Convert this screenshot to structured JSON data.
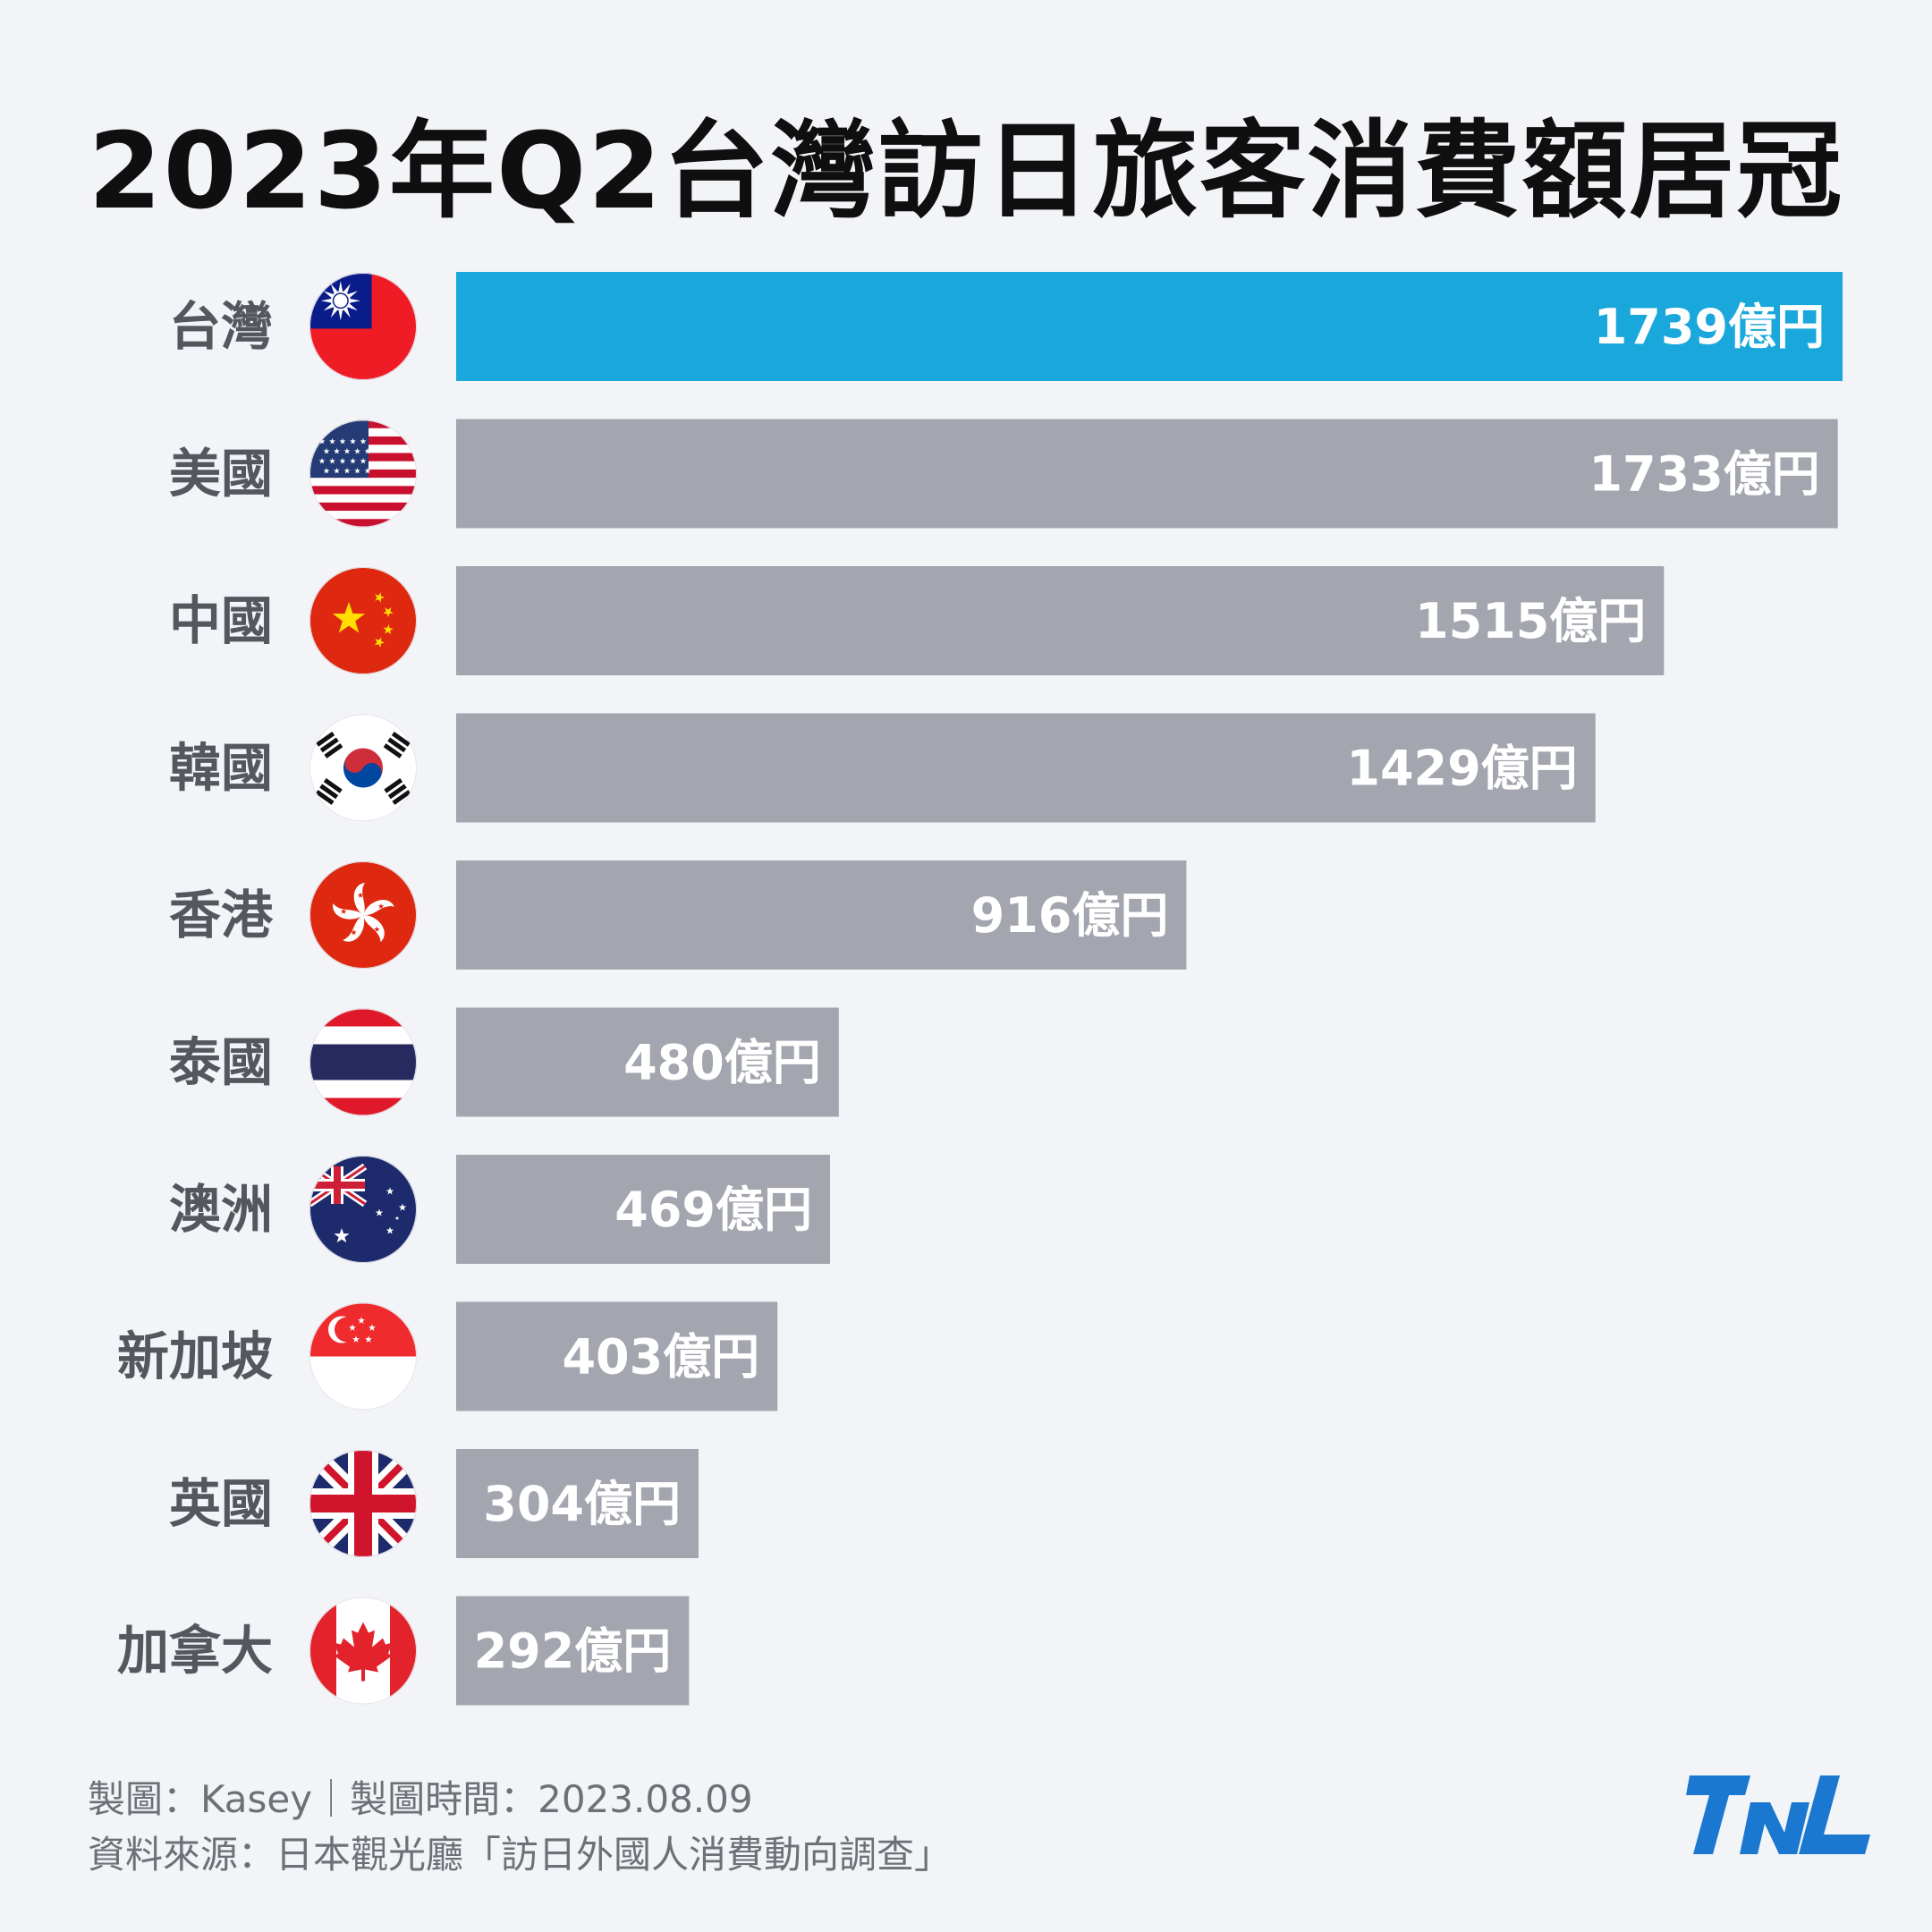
{
  "title": "2023年Q2台灣訪日旅客消費額居冠",
  "chart_data": {
    "type": "bar",
    "orientation": "horizontal",
    "unit": "億円",
    "categories": [
      "台灣",
      "美國",
      "中國",
      "韓國",
      "香港",
      "泰國",
      "澳洲",
      "新加坡",
      "英國",
      "加拿大"
    ],
    "values": [
      1739,
      1733,
      1515,
      1429,
      916,
      480,
      469,
      403,
      304,
      292
    ],
    "value_labels": [
      "1739億円",
      "1733億円",
      "1515億円",
      "1429億円",
      "916億円",
      "480億円",
      "469億円",
      "403億円",
      "304億円",
      "292億円"
    ],
    "flags": [
      "taiwan-flag-icon",
      "usa-flag-icon",
      "china-flag-icon",
      "korea-flag-icon",
      "hongkong-flag-icon",
      "thailand-flag-icon",
      "australia-flag-icon",
      "singapore-flag-icon",
      "uk-flag-icon",
      "canada-flag-icon"
    ],
    "highlight_index": 0,
    "colors": {
      "highlight": "#1aa7dc",
      "default": "#a3a5af",
      "background": "#f3f4f8"
    },
    "grid": false,
    "legend": false
  },
  "footer": {
    "credit": "製圖：Kasey｜製圖時間：2023.08.09",
    "source": "資料來源：日本觀光廳「訪日外國人消費動向調查」"
  },
  "logo": {
    "text": "TNL",
    "color": "#1a78d0"
  }
}
